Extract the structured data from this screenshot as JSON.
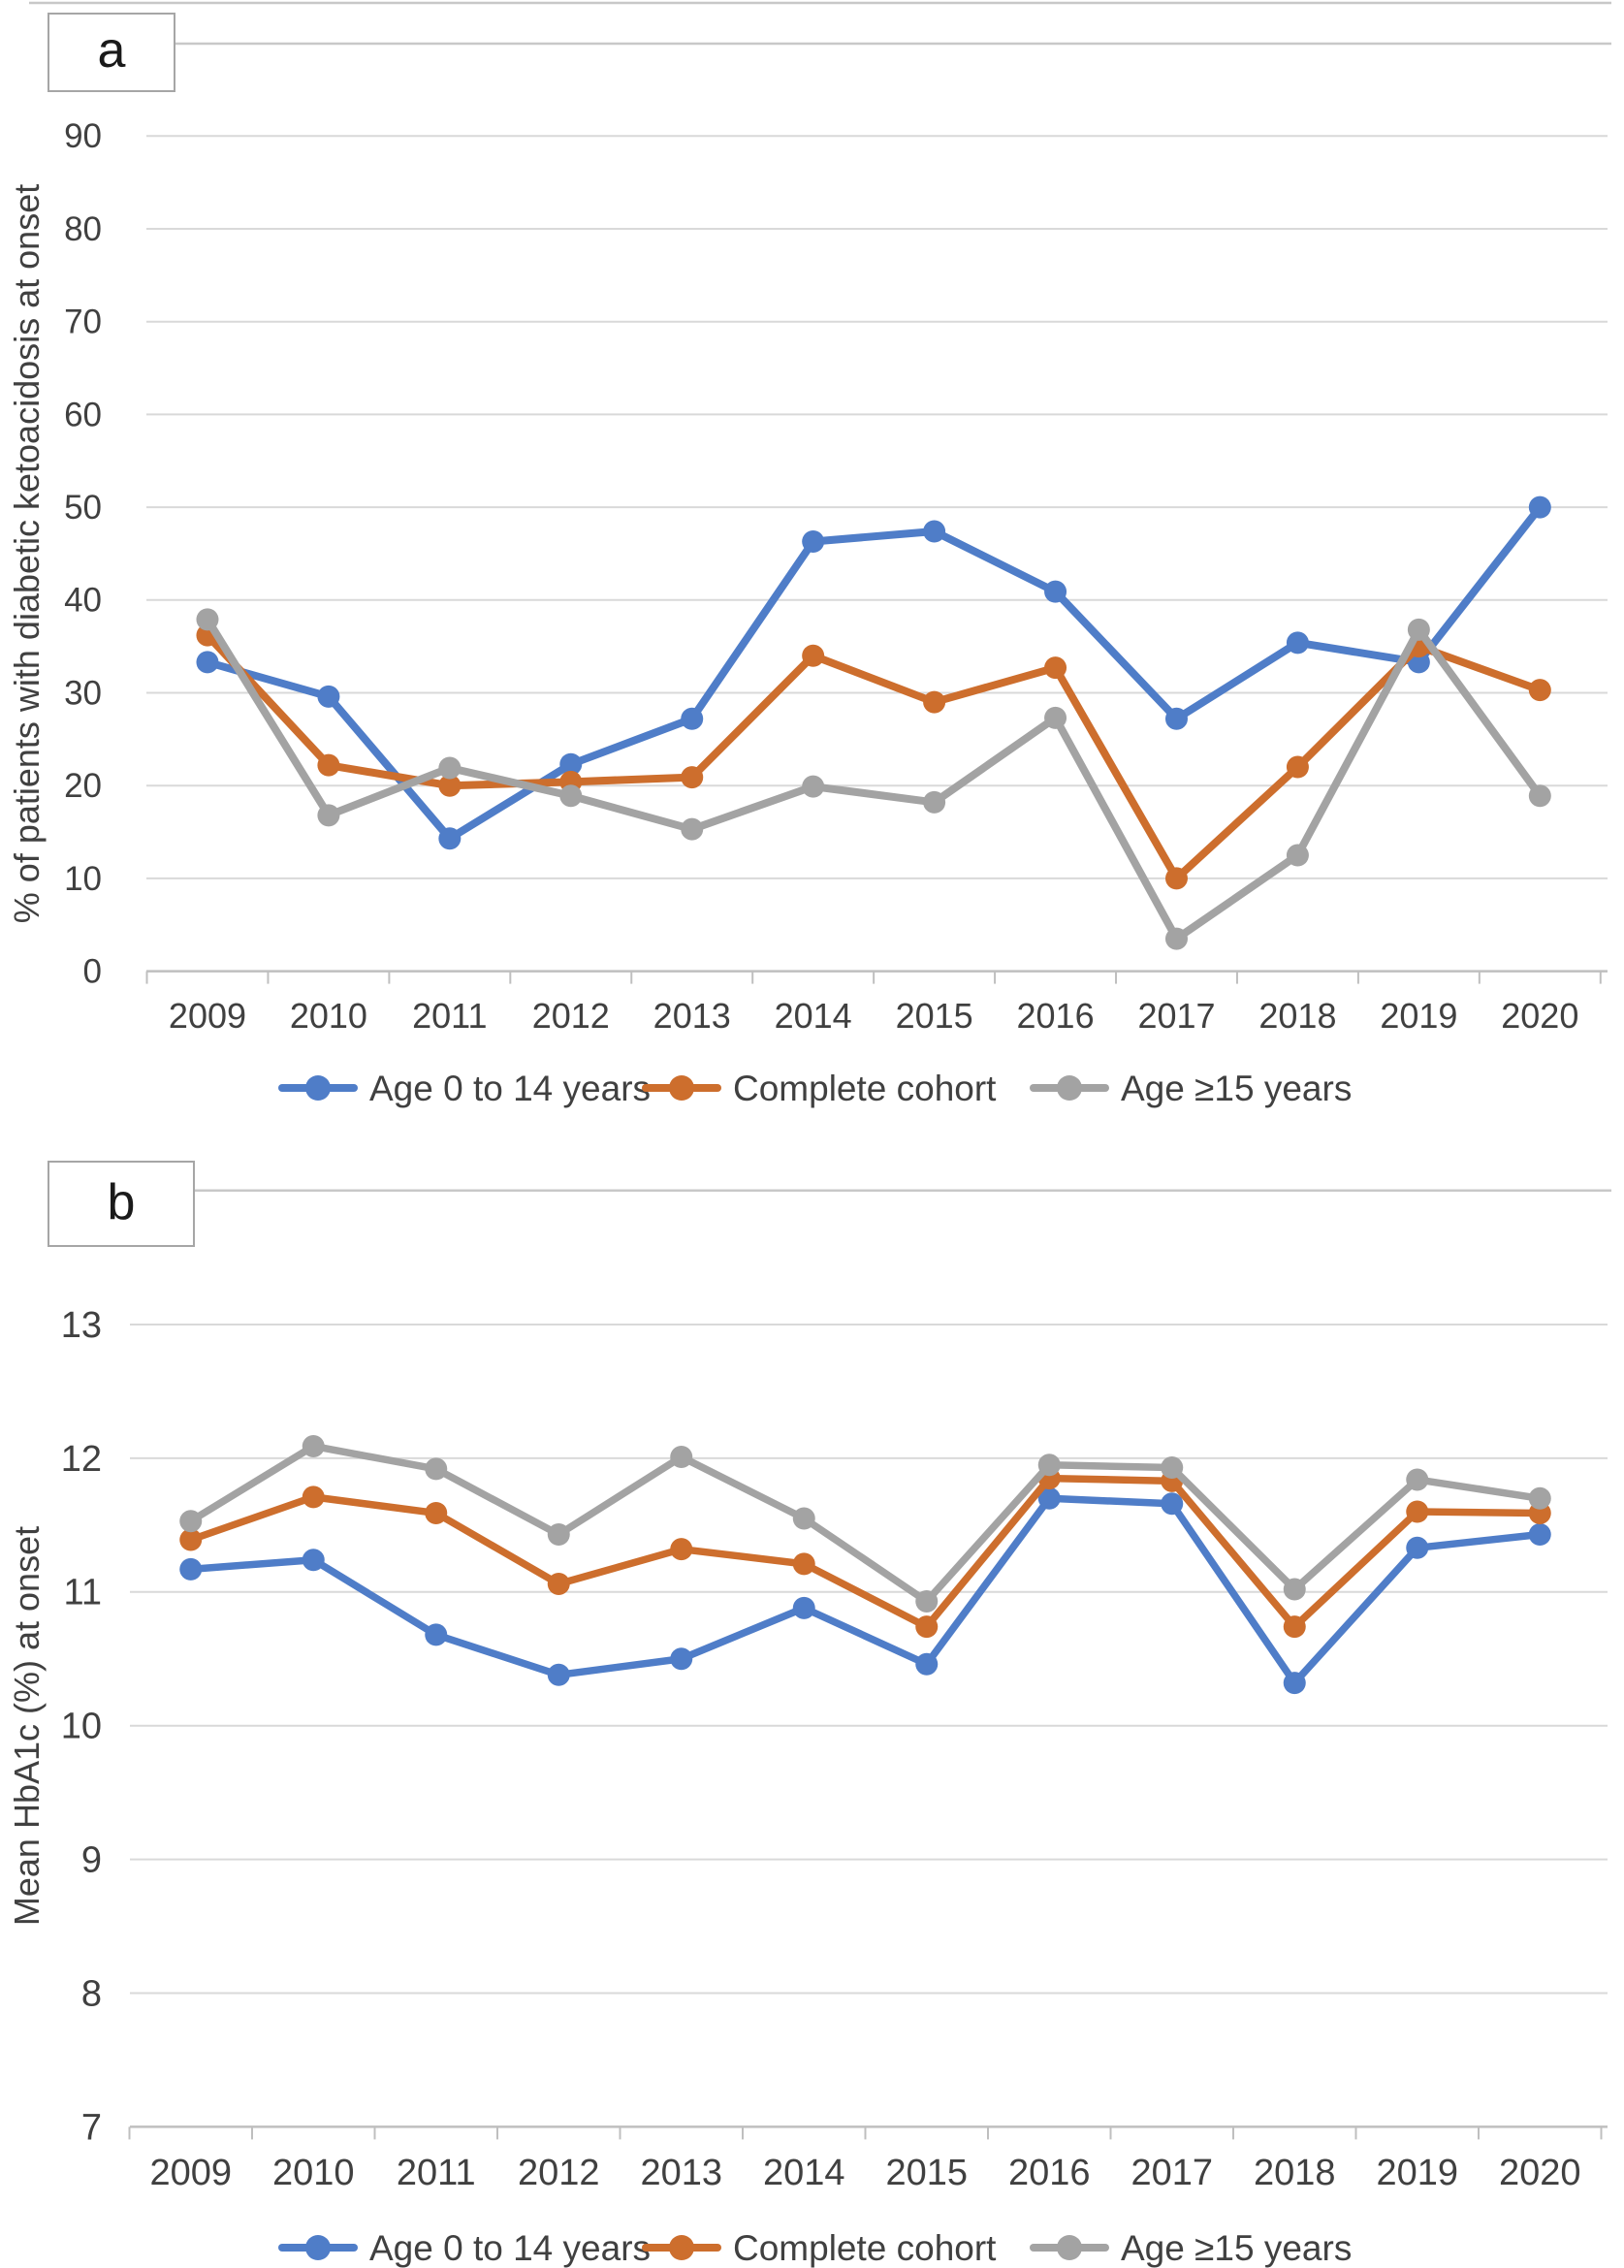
{
  "figure": {
    "background": "#ffffff",
    "panel_count": 2
  },
  "colors": {
    "series_blue": "#4F7DC8",
    "series_orange": "#CD6E2D",
    "series_gray": "#A3A3A3",
    "gridline": "#D9D9D9",
    "axis_line": "#BFBFBF",
    "tick_text": "#404040",
    "panel_rule": "#C8C8C8",
    "label_box_border": "#A6A6A6",
    "label_text": "#1A1A1A"
  },
  "chart_data": [
    {
      "type": "line",
      "panel_label": "a",
      "title": "",
      "xlabel": "",
      "ylabel": "% of patients with diabetic ketoacidosis at onset",
      "ylim": [
        0,
        90
      ],
      "ytick_step": 10,
      "grid": true,
      "legend_position": "bottom",
      "categories": [
        "2009",
        "2010",
        "2011",
        "2012",
        "2013",
        "2014",
        "2015",
        "2016",
        "2017",
        "2018",
        "2019",
        "2020"
      ],
      "yticks": [
        90,
        80,
        70,
        60,
        50,
        40,
        30,
        20,
        10,
        0
      ],
      "series": [
        {
          "name": "Age 0 to 14 years",
          "color_key": "series_blue",
          "values": [
            33.3,
            29.6,
            14.3,
            22.3,
            27.2,
            46.3,
            47.4,
            40.9,
            27.2,
            35.4,
            33.3,
            50.0
          ]
        },
        {
          "name": "Complete cohort",
          "color_key": "series_orange",
          "values": [
            36.2,
            22.2,
            20.0,
            20.4,
            20.9,
            34.0,
            29.0,
            32.7,
            10.0,
            22.0,
            35.0,
            30.3
          ]
        },
        {
          "name": "Age ≥15 years",
          "color_key": "series_gray",
          "values": [
            37.9,
            16.8,
            21.9,
            18.9,
            15.3,
            19.9,
            18.2,
            27.3,
            3.5,
            12.5,
            36.8,
            18.9
          ]
        }
      ]
    },
    {
      "type": "line",
      "panel_label": "b",
      "title": "",
      "xlabel": "",
      "ylabel": "Mean HbA1c (%) at onset",
      "ylim": [
        7,
        13
      ],
      "ytick_step": 1,
      "grid": true,
      "legend_position": "bottom",
      "categories": [
        "2009",
        "2010",
        "2011",
        "2012",
        "2013",
        "2014",
        "2015",
        "2016",
        "2017",
        "2018",
        "2019",
        "2020"
      ],
      "yticks": [
        13,
        12,
        11,
        10,
        9,
        8,
        7
      ],
      "series": [
        {
          "name": "Age 0 to 14 years",
          "color_key": "series_blue",
          "values": [
            11.17,
            11.24,
            10.68,
            10.38,
            10.5,
            10.88,
            10.46,
            11.7,
            11.66,
            10.32,
            11.33,
            11.43
          ]
        },
        {
          "name": "Complete cohort",
          "color_key": "series_orange",
          "values": [
            11.39,
            11.71,
            11.59,
            11.06,
            11.32,
            11.21,
            10.74,
            11.85,
            11.83,
            10.74,
            11.6,
            11.59
          ]
        },
        {
          "name": "Age ≥15 years",
          "color_key": "series_gray",
          "values": [
            11.53,
            12.09,
            11.92,
            11.43,
            12.01,
            11.55,
            10.93,
            11.95,
            11.93,
            11.02,
            11.84,
            11.7
          ]
        }
      ]
    }
  ]
}
